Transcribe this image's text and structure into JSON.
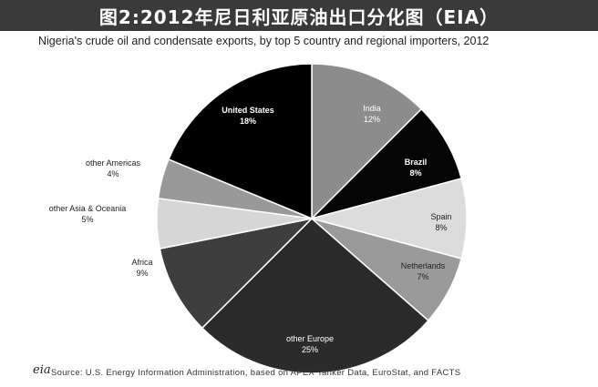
{
  "banner": {
    "title": "图2:2012年尼日利亚原油出口分化图（EIA）"
  },
  "chart_data": {
    "type": "pie",
    "title": "Nigeria's crude oil and condensate exports, by top 5 country and regional importers, 2012",
    "source": "Source: U.S. Energy Information Administration, based on APEX Tanker Data, EuroStat, and FACTS",
    "logo": "eia",
    "slices": [
      {
        "label": "India",
        "value": 12,
        "value_label": "12%",
        "color": "#8c8c8c",
        "text_color": "#ffffff"
      },
      {
        "label": "Brazil",
        "value": 8,
        "value_label": "8%",
        "color": "#050505",
        "text_color": "#ffffff"
      },
      {
        "label": "Spain",
        "value": 8,
        "value_label": "8%",
        "color": "#dcdcdc",
        "text_color": "#222222"
      },
      {
        "label": "Netherlands",
        "value": 7,
        "value_label": "7%",
        "color": "#9a9a9a",
        "text_color": "#222222"
      },
      {
        "label": "other Europe",
        "value": 25,
        "value_label": "25%",
        "color": "#2b2b2b",
        "text_color": "#ffffff"
      },
      {
        "label": "Africa",
        "value": 9,
        "value_label": "9%",
        "color": "#3e3e3e",
        "text_color": "#222222"
      },
      {
        "label": "other Asia & Oceania",
        "value": 5,
        "value_label": "5%",
        "color": "#d6d6d6",
        "text_color": "#222222"
      },
      {
        "label": "other Americas",
        "value": 4,
        "value_label": "4%",
        "color": "#999999",
        "text_color": "#222222"
      },
      {
        "label": "United States",
        "value": 18,
        "value_label": "18%",
        "color": "#000000",
        "text_color": "#ffffff"
      }
    ]
  }
}
